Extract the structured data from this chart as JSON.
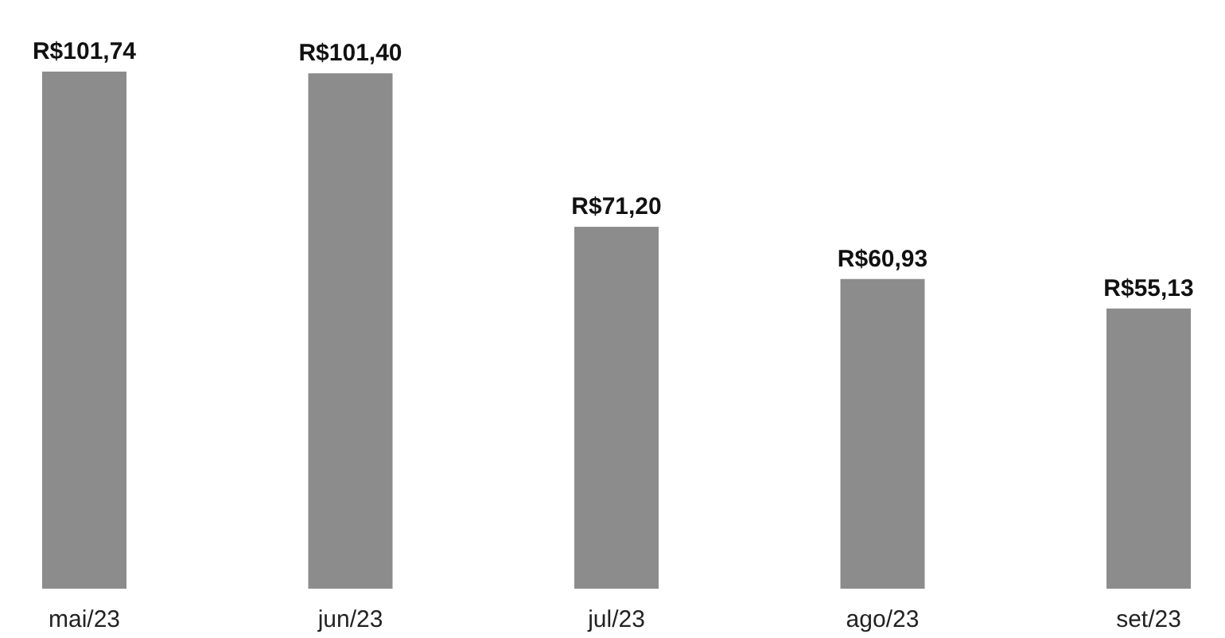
{
  "chart_data": {
    "type": "bar",
    "categories": [
      "mai/23",
      "jun/23",
      "jul/23",
      "ago/23",
      "set/23"
    ],
    "values": [
      101.74,
      101.4,
      71.2,
      60.93,
      55.13
    ],
    "value_labels": [
      "R$101,74",
      "R$101,40",
      "R$71,20",
      "R$60,93",
      "R$55,13"
    ],
    "color": "#8c8c8c"
  }
}
